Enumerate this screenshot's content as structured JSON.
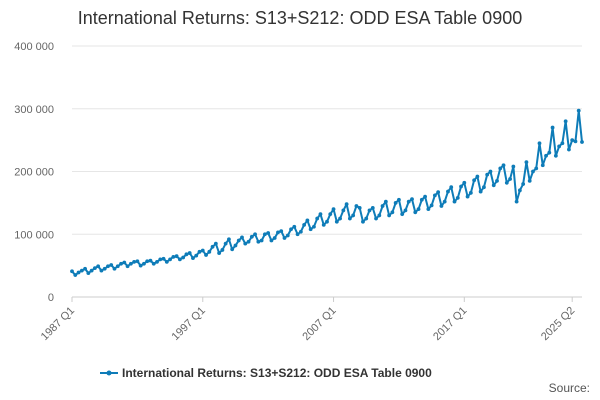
{
  "chart_data": {
    "type": "line",
    "title": "International Returns: S13+S212: ODD ESA Table 0900",
    "xlabel": "",
    "ylabel": "",
    "ylim": [
      0,
      400000
    ],
    "y_ticks": [
      0,
      100000,
      200000,
      300000,
      400000
    ],
    "y_tick_labels": [
      "0",
      "100 000",
      "200 000",
      "300 000",
      "400 000"
    ],
    "x_tick_labels": [
      "1987 Q1",
      "1997 Q1",
      "2007 Q1",
      "2017 Q1",
      "2025 Q2"
    ],
    "x_start": "1987 Q1",
    "x_end": "2025 Q2",
    "grid": true,
    "legend_position": "bottom",
    "colors": {
      "series": "#0e7cb8",
      "grid": "#e6e6e6"
    },
    "series": [
      {
        "name": "International Returns: S13+S212: ODD ESA Table 0900",
        "values": [
          41000,
          35000,
          39000,
          42000,
          45000,
          38000,
          42000,
          46000,
          49000,
          42000,
          45000,
          49000,
          51000,
          45000,
          49000,
          53000,
          55000,
          49000,
          53000,
          56000,
          57000,
          50000,
          53000,
          57000,
          58000,
          53000,
          56000,
          60000,
          61000,
          56000,
          60000,
          64000,
          65000,
          60000,
          63000,
          68000,
          70000,
          62000,
          66000,
          72000,
          74000,
          67000,
          72000,
          80000,
          85000,
          70000,
          75000,
          85000,
          92000,
          76000,
          82000,
          90000,
          95000,
          85000,
          88000,
          96000,
          100000,
          88000,
          90000,
          100000,
          102000,
          90000,
          94000,
          103000,
          105000,
          94000,
          98000,
          108000,
          112000,
          100000,
          104000,
          115000,
          122000,
          108000,
          112000,
          125000,
          132000,
          115000,
          120000,
          132000,
          140000,
          120000,
          125000,
          138000,
          148000,
          125000,
          130000,
          145000,
          142000,
          120000,
          125000,
          138000,
          142000,
          125000,
          130000,
          145000,
          152000,
          130000,
          135000,
          150000,
          155000,
          132000,
          138000,
          152000,
          156000,
          135000,
          140000,
          155000,
          160000,
          140000,
          146000,
          162000,
          167000,
          145000,
          152000,
          168000,
          175000,
          152000,
          158000,
          176000,
          182000,
          160000,
          166000,
          186000,
          192000,
          168000,
          175000,
          195000,
          200000,
          178000,
          185000,
          205000,
          210000,
          182000,
          188000,
          208000,
          152000,
          170000,
          180000,
          215000,
          185000,
          200000,
          205000,
          245000,
          210000,
          225000,
          230000,
          270000,
          225000,
          240000,
          245000,
          280000,
          235000,
          250000,
          248000,
          297000,
          247000
        ]
      }
    ]
  },
  "legend": {
    "label": "International Returns: S13+S212: ODD ESA Table 0900"
  },
  "source": {
    "label": "Source:"
  }
}
